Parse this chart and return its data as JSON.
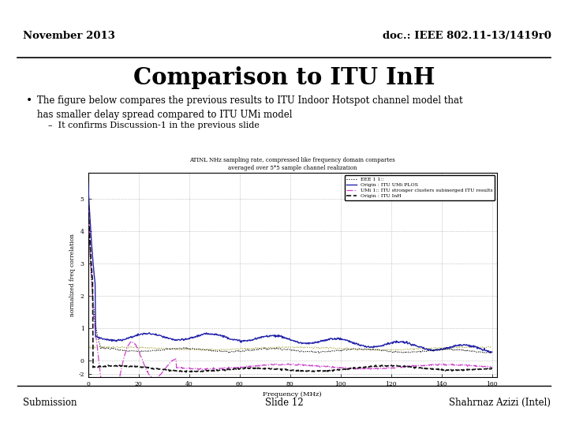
{
  "title_left": "November 2013",
  "title_right": "doc.: IEEE 802.11-13/1419r0",
  "main_title": "Comparison to ITU InH",
  "bullet_text": "The figure below compares the previous results to ITU Indoor Hotspot channel model that\nhas smaller delay spread compared to ITU UMi model",
  "sub_bullet": "It confirms Discussion-1 in the previous slide",
  "footer_left": "Submission",
  "footer_center": "Slide 12",
  "footer_right": "Shahrnaz Azizi (Intel)",
  "bg_color": "#ffffff",
  "text_color": "#000000",
  "chart_title_line1": "ATINL NHz sampling rate, compressed like frequency domain compartes",
  "chart_title_line2": "averaged over 5*5 sample channel realization",
  "legend_l1": "EEE 1 1::",
  "legend_l2": "Origin : ITU UMi PLOS",
  "legend_l3": "UMi 1:: ITU stronger clusters submerged ITU results",
  "legend_l4": "Origin : ITU InH",
  "xlabel": "Frequency (MHz)",
  "ylabel": "normalized freq correlation"
}
